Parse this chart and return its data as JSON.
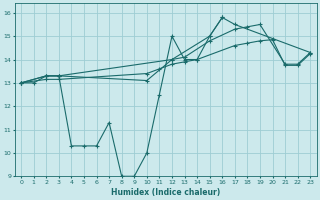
{
  "xlabel": "Humidex (Indice chaleur)",
  "background_color": "#cce9ec",
  "grid_color": "#9ecdd4",
  "line_color": "#1a6b6b",
  "xlim": [
    -0.5,
    23.5
  ],
  "ylim": [
    9,
    16.4
  ],
  "xticks": [
    0,
    1,
    2,
    3,
    4,
    5,
    6,
    7,
    8,
    9,
    10,
    11,
    12,
    13,
    14,
    15,
    16,
    17,
    18,
    19,
    20,
    21,
    22,
    23
  ],
  "yticks": [
    9,
    10,
    11,
    12,
    13,
    14,
    15,
    16
  ],
  "series": {
    "line1_x": [
      0,
      1,
      2,
      3,
      10,
      12,
      13,
      15,
      17,
      18,
      19,
      21,
      22,
      23
    ],
    "line1_y": [
      13.0,
      13.0,
      13.3,
      13.3,
      13.1,
      14.0,
      14.1,
      14.8,
      15.3,
      15.4,
      15.5,
      13.8,
      13.8,
      14.3
    ],
    "line2_x": [
      0,
      2,
      3,
      12,
      15,
      16,
      17,
      20,
      23
    ],
    "line2_y": [
      13.0,
      13.3,
      13.3,
      14.0,
      15.0,
      15.8,
      15.5,
      14.9,
      14.3
    ],
    "line3_x": [
      0,
      2,
      3,
      4,
      5,
      6,
      7,
      8,
      9,
      10,
      11,
      12,
      13,
      14,
      15,
      16
    ],
    "line3_y": [
      13.0,
      13.3,
      13.3,
      10.3,
      10.3,
      10.3,
      11.3,
      9.0,
      9.0,
      10.0,
      12.5,
      15.0,
      14.0,
      14.0,
      15.0,
      15.8
    ],
    "line4_x": [
      0,
      2,
      3,
      10,
      11,
      12,
      13,
      14,
      17,
      18,
      19,
      20,
      21,
      22,
      23
    ],
    "line4_y": [
      13.0,
      13.15,
      13.15,
      13.4,
      13.6,
      13.8,
      13.9,
      14.0,
      14.6,
      14.7,
      14.8,
      14.85,
      13.75,
      13.75,
      14.25
    ]
  }
}
